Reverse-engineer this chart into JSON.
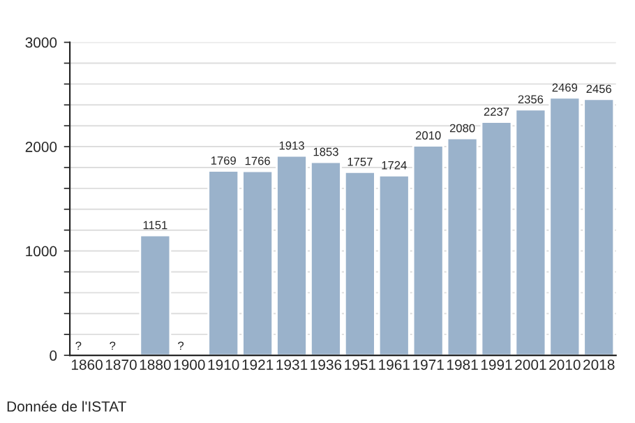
{
  "chart_data": {
    "type": "bar",
    "categories": [
      "1860",
      "1870",
      "1880",
      "1900",
      "1910",
      "1921",
      "1931",
      "1936",
      "1951",
      "1961",
      "1971",
      "1981",
      "1991",
      "2001",
      "2010",
      "2018"
    ],
    "values": [
      null,
      null,
      1151,
      null,
      1769,
      1766,
      1913,
      1853,
      1757,
      1724,
      2010,
      2080,
      2237,
      2356,
      2469,
      2456
    ],
    "value_labels": [
      "?",
      "?",
      "1151",
      "?",
      "1769",
      "1766",
      "1913",
      "1853",
      "1757",
      "1724",
      "2010",
      "2080",
      "2237",
      "2356",
      "2469",
      "2456"
    ],
    "color": "#9ab2cb",
    "ylim": [
      0,
      3000
    ],
    "yticks": [
      0,
      {
        "value": 200,
        "label": null
      },
      {
        "value": 400,
        "label": null
      },
      {
        "value": 600,
        "label": null
      },
      {
        "value": 800,
        "label": null
      },
      1000,
      {
        "value": 1200,
        "label": null
      },
      {
        "value": 1400,
        "label": null
      },
      {
        "value": 1600,
        "label": null
      },
      {
        "value": 1800,
        "label": null
      },
      2000,
      {
        "value": 2200,
        "label": null
      },
      {
        "value": 2400,
        "label": null
      },
      {
        "value": 2600,
        "label": null
      },
      {
        "value": 2800,
        "label": null
      },
      3000
    ],
    "grid": "y",
    "annotations": [
      "Donnée de l'ISTAT"
    ]
  }
}
